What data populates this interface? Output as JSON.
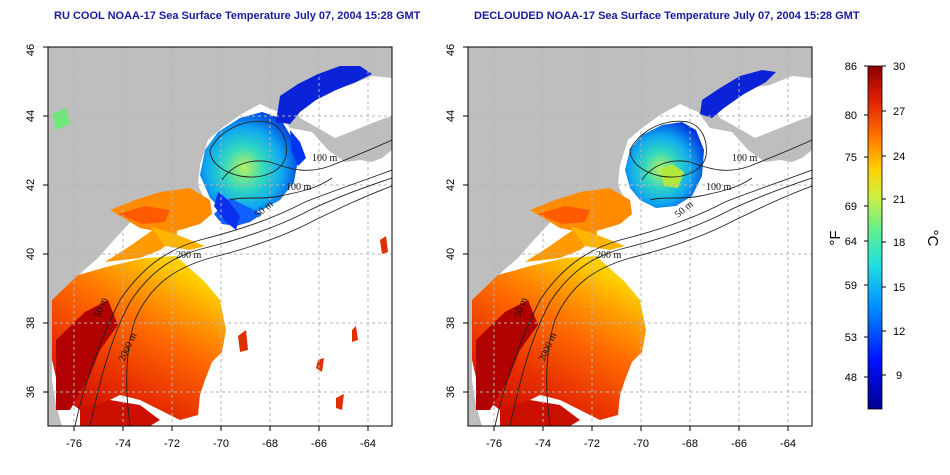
{
  "colors": {
    "land": "#bebebe",
    "frame": "#000000",
    "title": "#1a1a9c",
    "grid": "#b4b4b4",
    "contour": "#222222"
  },
  "panels": [
    {
      "id": "rucool",
      "title": "RU COOL NOAA-17 Sea Surface Temperature July 07, 2004 15:28 GMT",
      "contour_labels": [
        "100 m",
        "100 m",
        "50 m",
        "200 m",
        "50 m",
        "2000 m"
      ]
    },
    {
      "id": "declouded",
      "title": "DECLOUDED NOAA-17 Sea Surface Temperature July 07, 2004 15:28 GMT",
      "contour_labels": [
        "100 m",
        "100 m",
        "50 m",
        "200 m",
        "50 m",
        "2000 m"
      ]
    }
  ],
  "x_ticks": [
    "-76",
    "-74",
    "-72",
    "-70",
    "-68",
    "-66",
    "-64"
  ],
  "y_ticks": [
    "36",
    "38",
    "40",
    "42",
    "44",
    "46"
  ],
  "colorbar": {
    "fahrenheit_ticks": [
      "86",
      "80",
      "75",
      "69",
      "64",
      "59",
      "53",
      "48"
    ],
    "celsius_ticks": [
      "30",
      "27",
      "24",
      "21",
      "18",
      "15",
      "12",
      "9"
    ],
    "fahrenheit_unit": "°F",
    "celsius_unit": "°C",
    "range_celsius": [
      6,
      30
    ],
    "colormap": "jet-like: dark blue (cold) → cyan → green → yellow → orange → dark red (warm)"
  }
}
